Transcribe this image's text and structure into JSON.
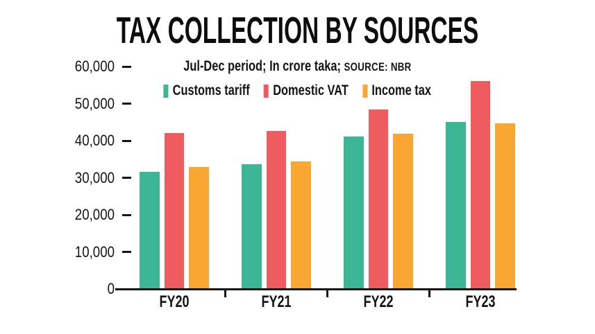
{
  "chart_data": {
    "type": "bar",
    "title": "TAX COLLECTION BY SOURCES",
    "subtitle_main": "Jul-Dec period; In crore taka;",
    "subtitle_source": "SOURCE: NBR",
    "categories": [
      "FY20",
      "FY21",
      "FY22",
      "FY23"
    ],
    "series": [
      {
        "name": "Customs tariff",
        "color": "#3CB795",
        "values": [
          31600,
          33600,
          41100,
          45000
        ]
      },
      {
        "name": "Domestic VAT",
        "color": "#EF5C5F",
        "values": [
          42100,
          42600,
          48400,
          56100
        ]
      },
      {
        "name": "Income tax",
        "color": "#F9A633",
        "values": [
          32900,
          34400,
          41900,
          44700
        ]
      }
    ],
    "ylim": [
      0,
      60000
    ],
    "y_ticks": [
      0,
      10000,
      20000,
      30000,
      40000,
      50000,
      60000
    ],
    "y_tick_labels": [
      "0",
      "10,000",
      "20,000",
      "30,000",
      "40,000",
      "50,000",
      "60,000"
    ],
    "legend_position": "top-center",
    "grid": false,
    "axis_color": "#141414",
    "background": "#FFFFFF"
  }
}
